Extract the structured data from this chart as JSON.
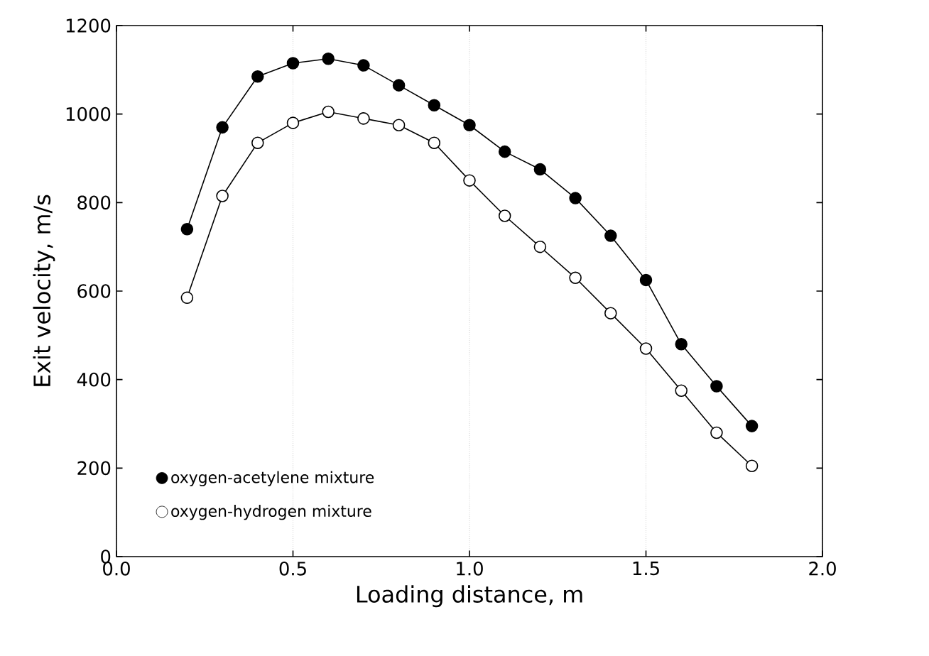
{
  "chart_data": {
    "type": "line",
    "xlabel": "Loading distance, m",
    "ylabel": "Exit velocity, m/s",
    "x": [
      0.2,
      0.3,
      0.4,
      0.5,
      0.6,
      0.7,
      0.8,
      0.9,
      1.0,
      1.1,
      1.2,
      1.3,
      1.4,
      1.5,
      1.6,
      1.7,
      1.8
    ],
    "series": [
      {
        "name": "oxygen-acetylene mixture",
        "color": "#000000",
        "values": [
          740,
          970,
          1085,
          1115,
          1125,
          1110,
          1065,
          1020,
          975,
          915,
          875,
          810,
          725,
          625,
          480,
          385,
          295
        ]
      },
      {
        "name": "oxygen-hydrogen mixture",
        "color": "#000000",
        "values": [
          585,
          815,
          935,
          980,
          1005,
          990,
          975,
          935,
          850,
          770,
          700,
          630,
          550,
          470,
          375,
          280,
          205
        ]
      }
    ],
    "xlim": [
      0,
      2
    ],
    "ylim": [
      0,
      1200
    ],
    "xticks": [
      {
        "value": 0,
        "label": "0.0"
      },
      {
        "value": 0.5,
        "label": "0.5"
      },
      {
        "value": 1,
        "label": "1.0"
      },
      {
        "value": 1.5,
        "label": "1.5"
      },
      {
        "value": 2,
        "label": "2.0"
      }
    ],
    "yticks": [
      0,
      200,
      400,
      600,
      800,
      1000,
      1200
    ],
    "grid": "x",
    "legend": "bottom left",
    "marker": "circle",
    "line_style": "solid"
  }
}
